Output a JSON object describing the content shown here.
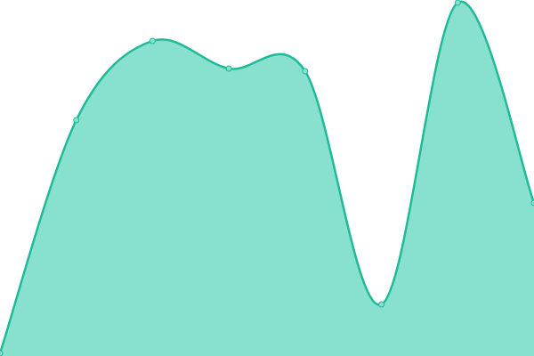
{
  "chart_data": {
    "type": "area",
    "categories": [
      null,
      null,
      null,
      null,
      null,
      null,
      null,
      null
    ],
    "values": [
      3,
      265,
      354,
      323,
      320,
      58,
      397,
      172
    ],
    "ylim": [
      0,
      400
    ],
    "color": "#1fba98",
    "fill": "#88e0cf"
  }
}
